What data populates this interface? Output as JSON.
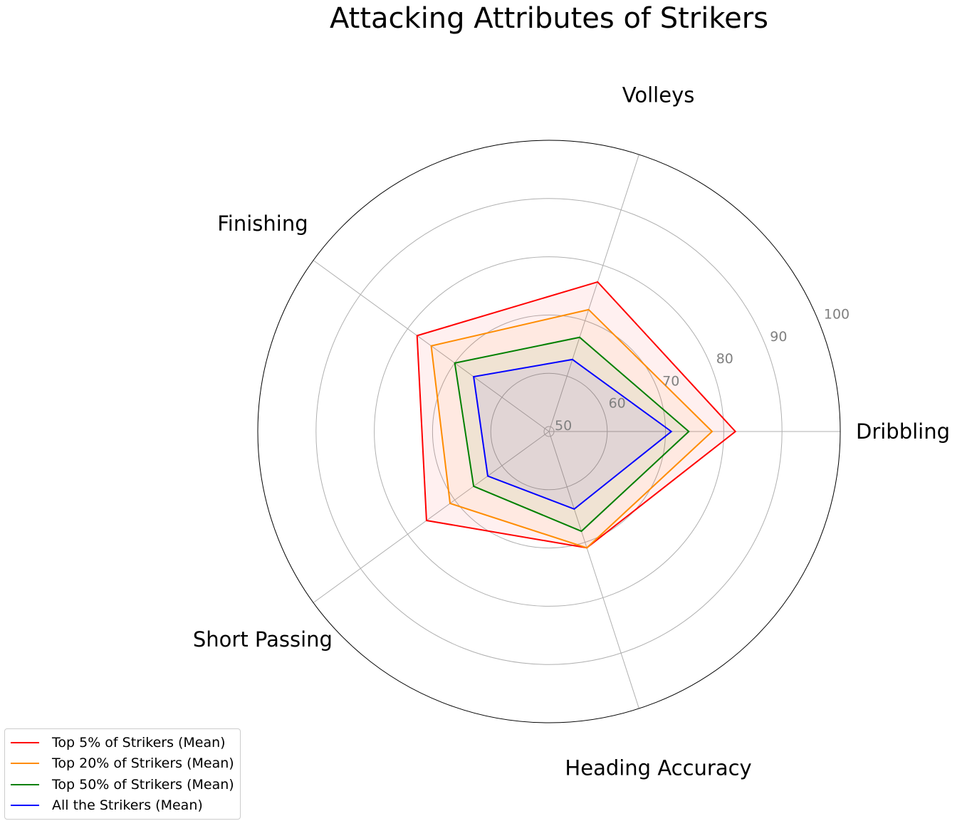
{
  "chart_data": {
    "type": "radar",
    "title": "Attacking Attributes of Strikers",
    "axes": [
      "Dribbling",
      "Volleys",
      "Finishing",
      "Short Passing",
      "Heading Accuracy"
    ],
    "rlim": [
      50,
      100
    ],
    "r_ticks": [
      "50",
      "60",
      "70",
      "80",
      "90",
      "100"
    ],
    "grid": true,
    "legend_position": "lower-left",
    "series": [
      {
        "name": "Top 5% of Strikers (Mean)",
        "color": "#ff0000",
        "values": [
          82,
          77,
          78,
          76,
          71
        ]
      },
      {
        "name": "Top 20% of Strikers (Mean)",
        "color": "#ff8c00",
        "values": [
          78,
          72,
          75,
          71,
          71
        ]
      },
      {
        "name": "Top 50% of Strikers (Mean)",
        "color": "#008000",
        "values": [
          74,
          67,
          70,
          66,
          68
        ]
      },
      {
        "name": "All the Strikers (Mean)",
        "color": "#0000ff",
        "values": [
          71,
          63,
          66,
          63,
          64
        ]
      }
    ]
  }
}
